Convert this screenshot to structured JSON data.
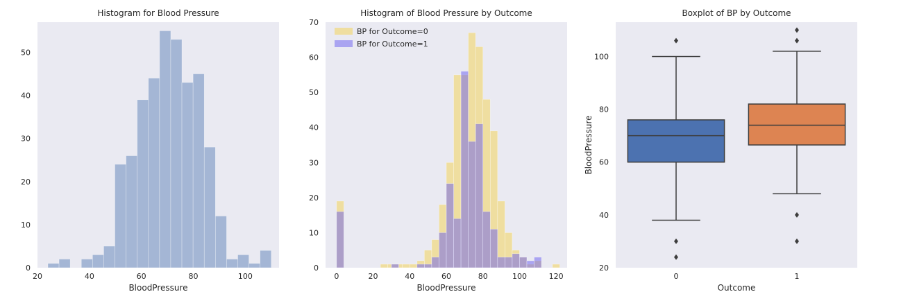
{
  "colors": {
    "background": "#EAEAF2",
    "hist": "#A4B6D5",
    "outcome0": "#F2D45C",
    "outcome1": "#6A5EF0",
    "box0": "#4C72B0",
    "box1": "#DD8452",
    "line": "#3D3D3D"
  },
  "chart_data": [
    {
      "type": "bar",
      "title": "Histogram for Blood Pressure",
      "xlabel": "BloodPressure",
      "ylabel": "",
      "xlim": [
        20,
        113
      ],
      "ylim": [
        0,
        57
      ],
      "xticks": [
        "20",
        "40",
        "60",
        "80",
        "100"
      ],
      "yticks": [
        "0",
        "10",
        "20",
        "30",
        "40",
        "50"
      ],
      "grid": false,
      "bin_edges": [
        24,
        28.3,
        32.6,
        36.9,
        41.2,
        45.5,
        49.8,
        54.1,
        58.4,
        62.7,
        67,
        71.3,
        75.6,
        79.9,
        84.2,
        88.5,
        92.8,
        97.1,
        101.4,
        105.7,
        110
      ],
      "values": [
        1,
        2,
        0,
        2,
        3,
        5,
        24,
        26,
        39,
        44,
        55,
        53,
        43,
        45,
        28,
        12,
        2,
        3,
        1,
        4
      ]
    },
    {
      "type": "bar",
      "title": "Histogram of Blood Pressure by Outcome",
      "xlabel": "BloodPressure",
      "ylabel": "",
      "xlim": [
        -6,
        126
      ],
      "ylim": [
        0,
        70
      ],
      "xticks": [
        "0",
        "20",
        "40",
        "60",
        "80",
        "100",
        "120"
      ],
      "yticks": [
        "0",
        "10",
        "20",
        "30",
        "40",
        "50",
        "60",
        "70"
      ],
      "legend": "top-left",
      "grid": false,
      "series": [
        {
          "name": "BP for Outcome=0",
          "bin_edges": [
            0,
            4,
            24,
            28,
            30,
            34,
            36,
            40,
            44,
            48,
            52,
            56,
            60,
            64,
            68,
            72,
            76,
            80,
            84,
            88,
            92,
            96,
            100,
            104,
            108,
            112,
            118,
            122
          ],
          "values": [
            19,
            0,
            1,
            1,
            1,
            1,
            1,
            1,
            2,
            5,
            8,
            18,
            30,
            55,
            55,
            67,
            63,
            48,
            39,
            19,
            10,
            5,
            3,
            1,
            2,
            0,
            1
          ]
        },
        {
          "name": "BP for Outcome=1",
          "bin_edges": [
            0,
            4,
            30,
            34,
            44,
            48,
            52,
            56,
            60,
            64,
            68,
            72,
            76,
            80,
            84,
            88,
            92,
            96,
            100,
            104,
            108,
            112
          ],
          "values": [
            16,
            0,
            1,
            0,
            1,
            1,
            3,
            10,
            24,
            14,
            56,
            36,
            41,
            16,
            11,
            3,
            3,
            4,
            3,
            2,
            3
          ]
        }
      ]
    },
    {
      "type": "box",
      "title": "Boxplot of BP by Outcome",
      "xlabel": "Outcome",
      "ylabel": "BloodPressure",
      "ylim": [
        20,
        113
      ],
      "categories": [
        "0",
        "1"
      ],
      "yticks": [
        "20",
        "40",
        "60",
        "80",
        "100"
      ],
      "grid": false,
      "boxes": [
        {
          "category": "0",
          "whisker_low": 38,
          "q1": 60,
          "median": 70,
          "q3": 76,
          "whisker_high": 100,
          "outliers": [
            24,
            30,
            106
          ]
        },
        {
          "category": "1",
          "whisker_low": 48,
          "q1": 66.5,
          "median": 74,
          "q3": 82,
          "whisker_high": 102,
          "outliers": [
            30,
            40,
            106,
            110
          ]
        }
      ]
    }
  ]
}
